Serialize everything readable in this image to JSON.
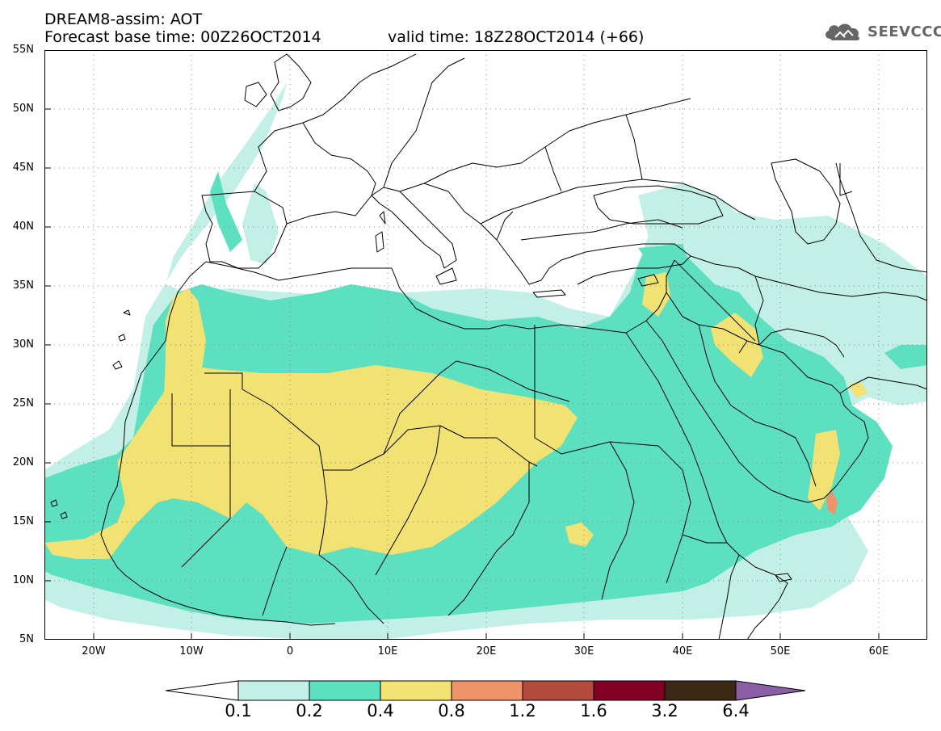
{
  "header": {
    "title_line_1": "DREAM8-assim: AOT",
    "title_line_2": "Forecast base time: 00Z26OCT2014",
    "valid_time": "valid time: 18Z28OCT2014 (+66)",
    "logo_text": "SEEVCCC",
    "logo_icon": "cloud-icon"
  },
  "map": {
    "lat_labels": [
      "55N",
      "50N",
      "45N",
      "40N",
      "35N",
      "30N",
      "25N",
      "20N",
      "15N",
      "10N",
      "5N"
    ],
    "lon_labels": [
      "20W",
      "10W",
      "0",
      "10E",
      "20E",
      "30E",
      "40E",
      "50E",
      "60E"
    ],
    "lon_range": [
      -25,
      65
    ],
    "lat_range": [
      5,
      55
    ],
    "grid": "dotted"
  },
  "colorbar": {
    "levels": [
      "0.1",
      "0.2",
      "0.4",
      "0.8",
      "1.2",
      "1.6",
      "3.2",
      "6.4"
    ],
    "colors": [
      "#ffffff",
      "#c2f0e6",
      "#5ce0bf",
      "#f2e173",
      "#ee936a",
      "#b24a3e",
      "#800026",
      "#3c2814",
      "#8a5fa8"
    ]
  }
}
